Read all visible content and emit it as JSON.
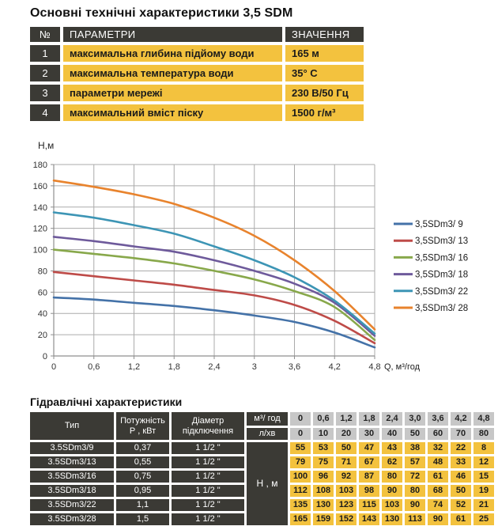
{
  "spec_table": {
    "title": "Основні технічні характеристики 3,5 SDM",
    "headers": {
      "num": "№",
      "param": "ПАРАМЕТРИ",
      "value": "ЗНАЧЕННЯ"
    },
    "rows": [
      {
        "num": "1",
        "param": "максимальна глибина підйому води",
        "value": "165 м"
      },
      {
        "num": "2",
        "param": "максимальна температура води",
        "value": "35° С"
      },
      {
        "num": "3",
        "param": "параметри мережі",
        "value": "230 В/50 Гц"
      },
      {
        "num": "4",
        "param": "максимальний вміст піску",
        "value": "1500 г/м³"
      }
    ]
  },
  "chart_data": {
    "type": "line",
    "title": "",
    "xlabel": "Q, м³/год",
    "ylabel": "H,м",
    "x": [
      0,
      0.6,
      1.2,
      1.8,
      2.4,
      3.0,
      3.6,
      4.2,
      4.8
    ],
    "x_tick_labels": [
      "0",
      "0,6",
      "1,2",
      "1,8",
      "2,4",
      "3",
      "3,6",
      "4,2",
      "4,8"
    ],
    "ylim": [
      0,
      180
    ],
    "y_step": 20,
    "y_tick_labels": [
      "0",
      "20",
      "40",
      "60",
      "80",
      "100",
      "120",
      "140",
      "160",
      "180"
    ],
    "grid": true,
    "legend_position": "right",
    "series": [
      {
        "name": "3,5SDm3/ 9",
        "color": "#4472A8",
        "values": [
          55,
          53,
          50,
          47,
          43,
          38,
          32,
          22,
          8
        ]
      },
      {
        "name": "3,5SDm3/ 13",
        "color": "#BE4B48",
        "values": [
          79,
          75,
          71,
          67,
          62,
          57,
          48,
          33,
          12
        ]
      },
      {
        "name": "3,5SDm3/ 16",
        "color": "#88A84B",
        "values": [
          100,
          96,
          92,
          87,
          80,
          72,
          61,
          46,
          15
        ]
      },
      {
        "name": "3,5SDm3/ 18",
        "color": "#6E5A9B",
        "values": [
          112,
          108,
          103,
          98,
          90,
          80,
          68,
          50,
          19
        ]
      },
      {
        "name": "3,5SDm3/ 22",
        "color": "#3D95B5",
        "values": [
          135,
          130,
          123,
          115,
          103,
          90,
          74,
          52,
          21
        ]
      },
      {
        "name": "3,5SDm3/ 28",
        "color": "#E8832D",
        "values": [
          165,
          159,
          152,
          143,
          130,
          113,
          90,
          61,
          25
        ]
      }
    ]
  },
  "hydraulic_table": {
    "title": "Гідравлічні характеристики",
    "col_headers": {
      "type": "Тип",
      "power_line1": "Потужність",
      "power_line2": "Р , кВт",
      "diameter_line1": "Діаметр",
      "diameter_line2": "підключення",
      "flow_h": "м³/ год",
      "flow_min": "л/хв",
      "head_unit": "Н , м"
    },
    "flow_m3h": [
      "0",
      "0,6",
      "1,2",
      "1,8",
      "2,4",
      "3,0",
      "3,6",
      "4,2",
      "4,8"
    ],
    "flow_lmin": [
      "0",
      "10",
      "20",
      "30",
      "40",
      "50",
      "60",
      "70",
      "80"
    ],
    "rows": [
      {
        "type": "3.5SDm3/9",
        "power": "0,37",
        "diameter": "1 1/2 \"",
        "heads": [
          "55",
          "53",
          "50",
          "47",
          "43",
          "38",
          "32",
          "22",
          "8"
        ]
      },
      {
        "type": "3.5SDm3/13",
        "power": "0,55",
        "diameter": "1 1/2 \"",
        "heads": [
          "79",
          "75",
          "71",
          "67",
          "62",
          "57",
          "48",
          "33",
          "12"
        ]
      },
      {
        "type": "3.5SDm3/16",
        "power": "0,75",
        "diameter": "1 1/2 \"",
        "heads": [
          "100",
          "96",
          "92",
          "87",
          "80",
          "72",
          "61",
          "46",
          "15"
        ]
      },
      {
        "type": "3.5SDm3/18",
        "power": "0,95",
        "diameter": "1 1/2 \"",
        "heads": [
          "112",
          "108",
          "103",
          "98",
          "90",
          "80",
          "68",
          "50",
          "19"
        ]
      },
      {
        "type": "3.5SDm3/22",
        "power": "1,1",
        "diameter": "1 1/2 \"",
        "heads": [
          "135",
          "130",
          "123",
          "115",
          "103",
          "90",
          "74",
          "52",
          "21"
        ]
      },
      {
        "type": "3.5SDm3/28",
        "power": "1,5",
        "diameter": "1 1/2 \"",
        "heads": [
          "165",
          "159",
          "152",
          "143",
          "130",
          "113",
          "90",
          "61",
          "25"
        ]
      }
    ]
  },
  "colors": {
    "dark_cell": "#3B3A35",
    "yellow_cell": "#F3C23E",
    "gray_cell": "#C7C7C7",
    "gridline": "#ABABAB",
    "axis": "#8F8F8F",
    "chart_text": "#333333"
  }
}
